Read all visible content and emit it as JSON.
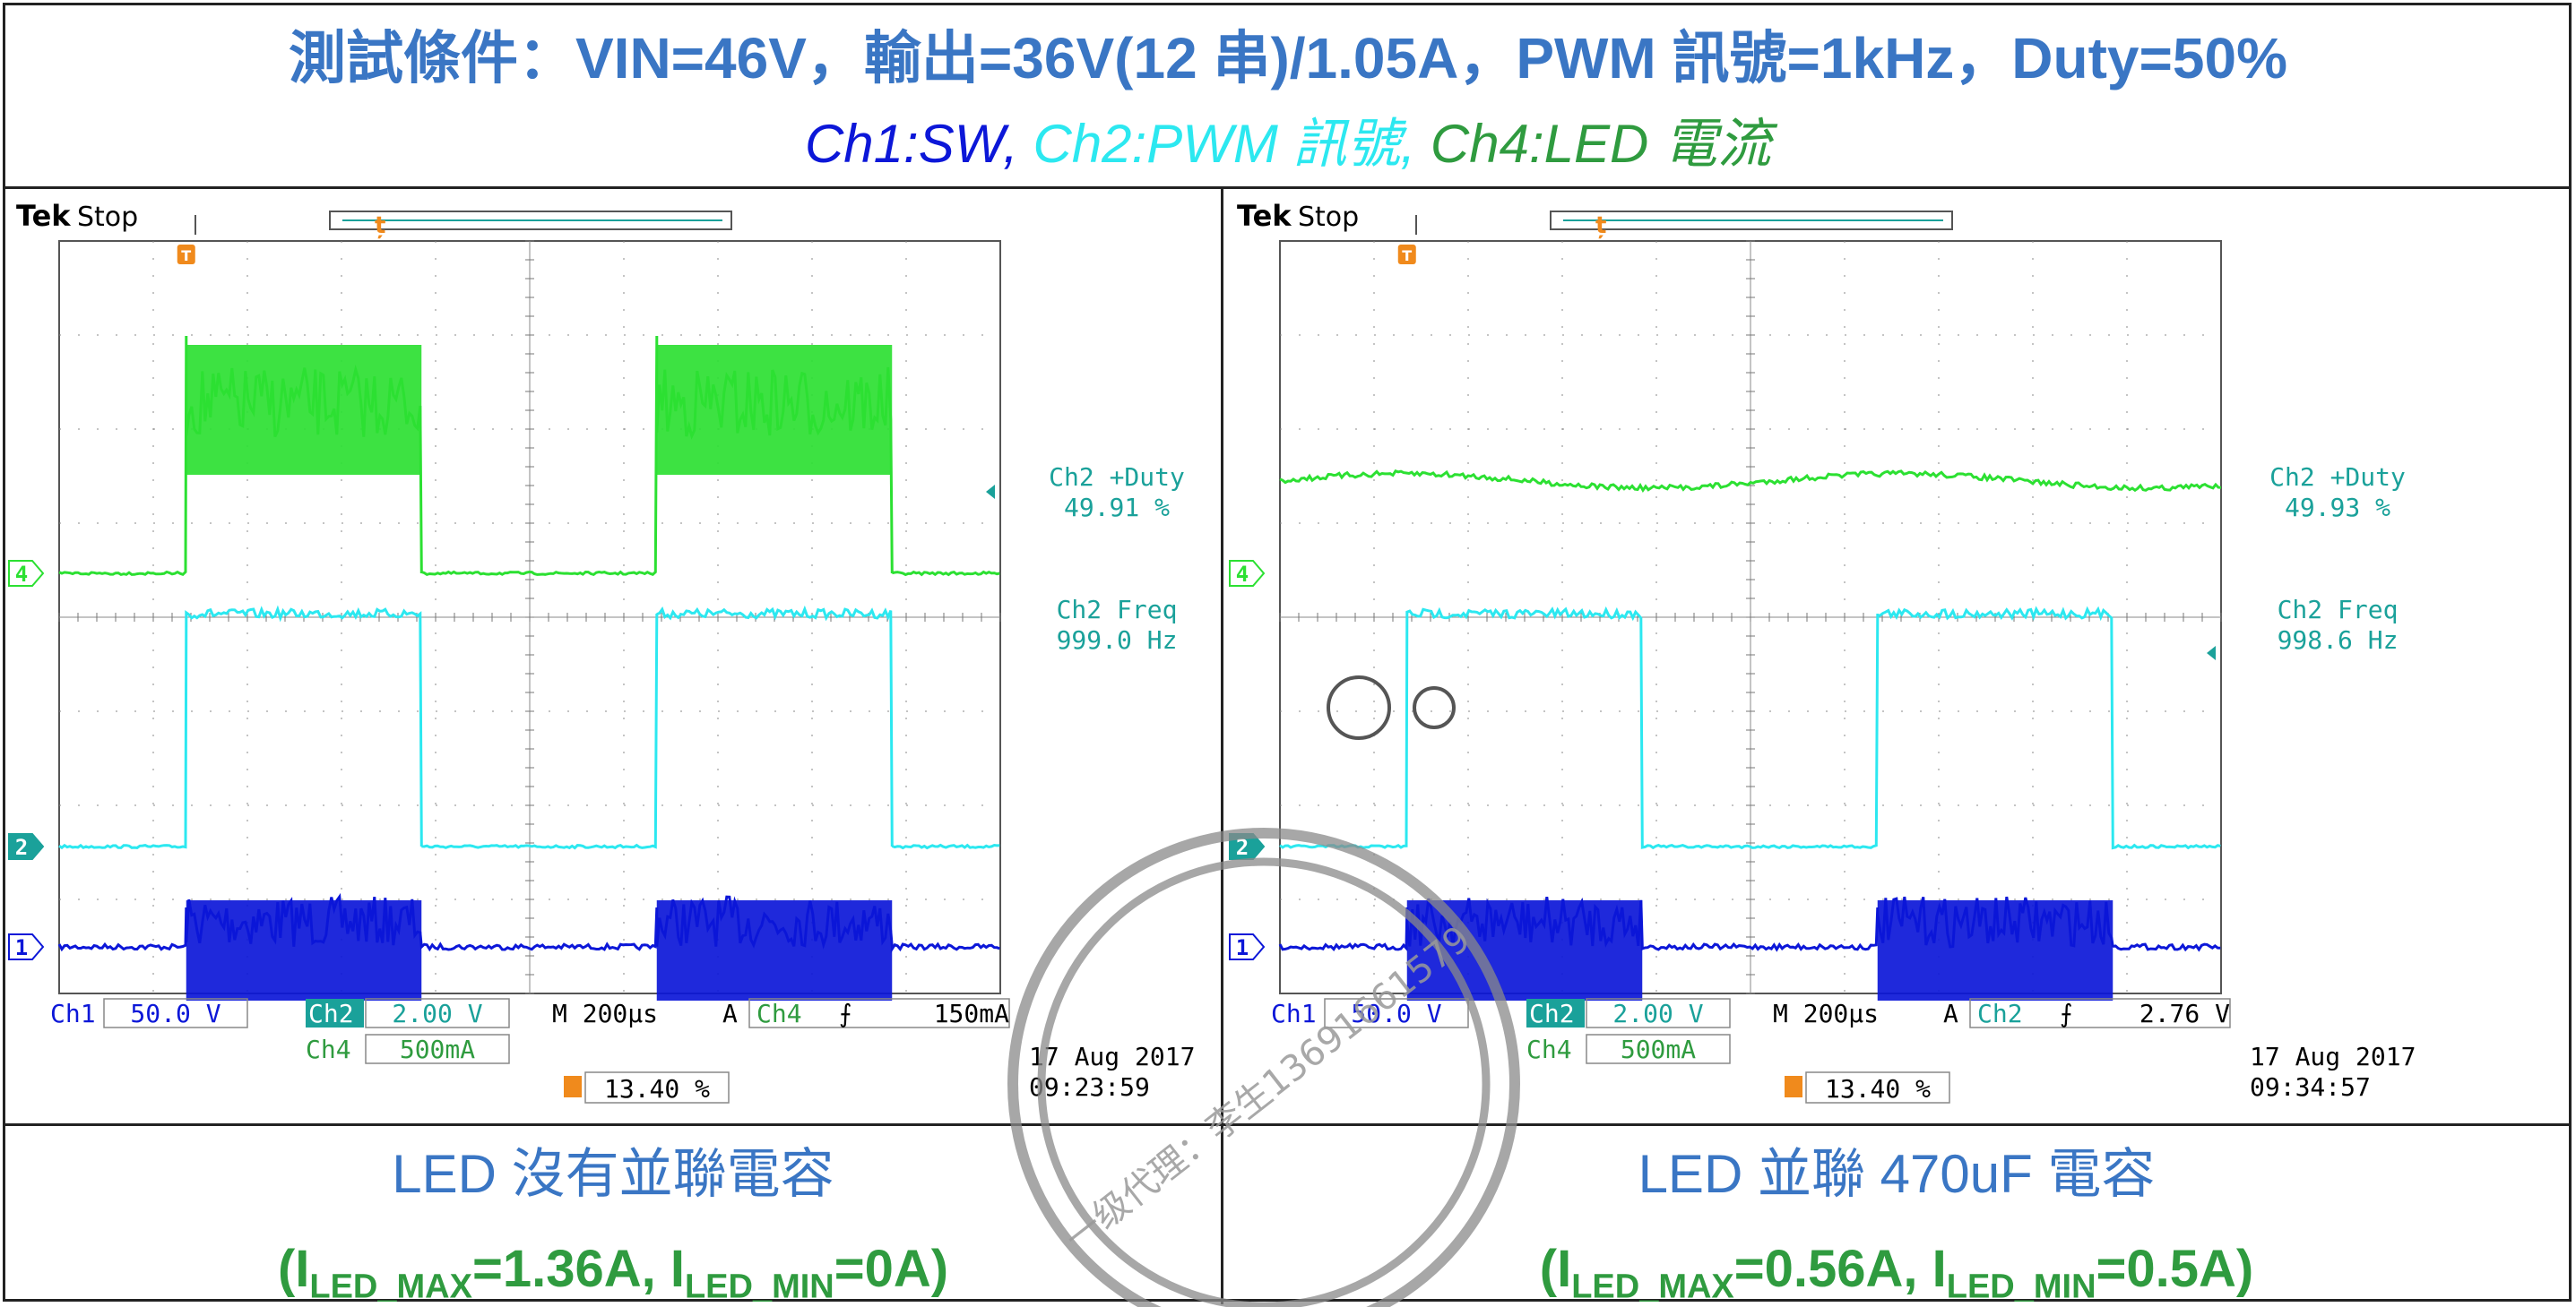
{
  "title": {
    "line1": "測試條件：VIN=46V，輸出=36V(12 串)/1.05A，PWM 訊號=1kHz，Duty=50%",
    "ch1": "Ch1:SW,",
    "ch2": "Ch2:PWM 訊號,",
    "ch4": "Ch4:LED 電流"
  },
  "colors": {
    "ch1": "#0c17d8",
    "ch2": "#2ce8f0",
    "ch4": "#2ce032",
    "scope_text": "#1aa19a",
    "title": "#3a76c4",
    "caption_green": "#2f9b3f",
    "trigger": "#f08a1c"
  },
  "chart_data": [
    {
      "type": "line",
      "brand": "Tek",
      "status": "Stop",
      "series": [
        {
          "name": "Ch1",
          "x_ms": [
            0,
            0.27,
            0.27,
            0.77,
            0.77,
            1.27,
            1.27,
            1.77,
            1.77,
            2.0
          ],
          "levels_V": [
            0,
            0,
            40,
            40,
            0,
            0,
            40,
            40,
            0,
            0
          ]
        },
        {
          "name": "Ch2",
          "x_ms": [
            0,
            0.27,
            0.27,
            0.77,
            0.77,
            1.27,
            1.27,
            1.77,
            1.77,
            2.0
          ],
          "levels_V": [
            0,
            0,
            5,
            5,
            0,
            0,
            5,
            5,
            0,
            0
          ]
        },
        {
          "name": "Ch4",
          "x_ms": [
            0,
            0.27,
            0.27,
            0.77,
            0.77,
            1.27,
            1.27,
            1.77,
            1.77,
            2.0
          ],
          "levels_A": [
            0,
            0,
            1.36,
            1.36,
            0,
            0,
            1.36,
            1.36,
            0,
            0
          ]
        }
      ],
      "measurements": [
        {
          "label": "Ch2 +Duty",
          "value": "49.91 %"
        },
        {
          "label": "Ch2 Freq",
          "value": "999.0 Hz"
        }
      ],
      "settings": {
        "ch1_label": "Ch1",
        "ch1_scale": "50.0 V",
        "ch2_label": "Ch2",
        "ch2_scale": "2.00 V",
        "ch4_label": "Ch4",
        "ch4_scale": "500mA",
        "timebase": "M 200µs",
        "trigger_mode": "A",
        "trigger_source": "Ch4",
        "trigger_slope": "⨍",
        "trigger_level": "150mA",
        "trigger_pos": "13.40 %"
      },
      "date": "17 Aug 2017",
      "time": "09:23:59",
      "caption": "LED 沒有並聯電容",
      "imax_prefix": "(I",
      "imax_sub": "LED_MAX",
      "imax_val": "=1.36A, I",
      "imin_sub": "LED_MIN",
      "imin_val": "=0A)"
    },
    {
      "type": "line",
      "brand": "Tek",
      "status": "Stop",
      "series": [
        {
          "name": "Ch1",
          "x_ms": [
            0,
            0.27,
            0.27,
            0.77,
            0.77,
            1.27,
            1.27,
            1.77,
            1.77,
            2.0
          ],
          "levels_V": [
            0,
            0,
            40,
            40,
            0,
            0,
            40,
            40,
            0,
            0
          ]
        },
        {
          "name": "Ch2",
          "x_ms": [
            0,
            0.27,
            0.27,
            0.77,
            0.77,
            1.27,
            1.27,
            1.77,
            1.77,
            2.0
          ],
          "levels_V": [
            0,
            0,
            5,
            5,
            0,
            0,
            5,
            5,
            0,
            0
          ]
        },
        {
          "name": "Ch4",
          "x_ms": [
            0,
            2.0
          ],
          "levels_A": [
            0.53,
            0.53
          ]
        }
      ],
      "measurements": [
        {
          "label": "Ch2 +Duty",
          "value": "49.93 %"
        },
        {
          "label": "Ch2 Freq",
          "value": "998.6 Hz"
        }
      ],
      "settings": {
        "ch1_label": "Ch1",
        "ch1_scale": "50.0 V",
        "ch2_label": "Ch2",
        "ch2_scale": "2.00 V",
        "ch4_label": "Ch4",
        "ch4_scale": "500mA",
        "timebase": "M 200µs",
        "trigger_mode": "A",
        "trigger_source": "Ch2",
        "trigger_slope": "⨍",
        "trigger_level": "2.76 V",
        "trigger_pos": "13.40 %"
      },
      "date": "17 Aug 2017",
      "time": "09:34:57",
      "caption": "LED 並聯 470uF 電容",
      "imax_prefix": "(I",
      "imax_sub": "LED_MAX",
      "imax_val": "=0.56A, I",
      "imin_sub": "LED_MIN",
      "imin_val": "=0.5A)"
    }
  ],
  "watermark": {
    "line1": "一级代理：李生13691661579"
  }
}
